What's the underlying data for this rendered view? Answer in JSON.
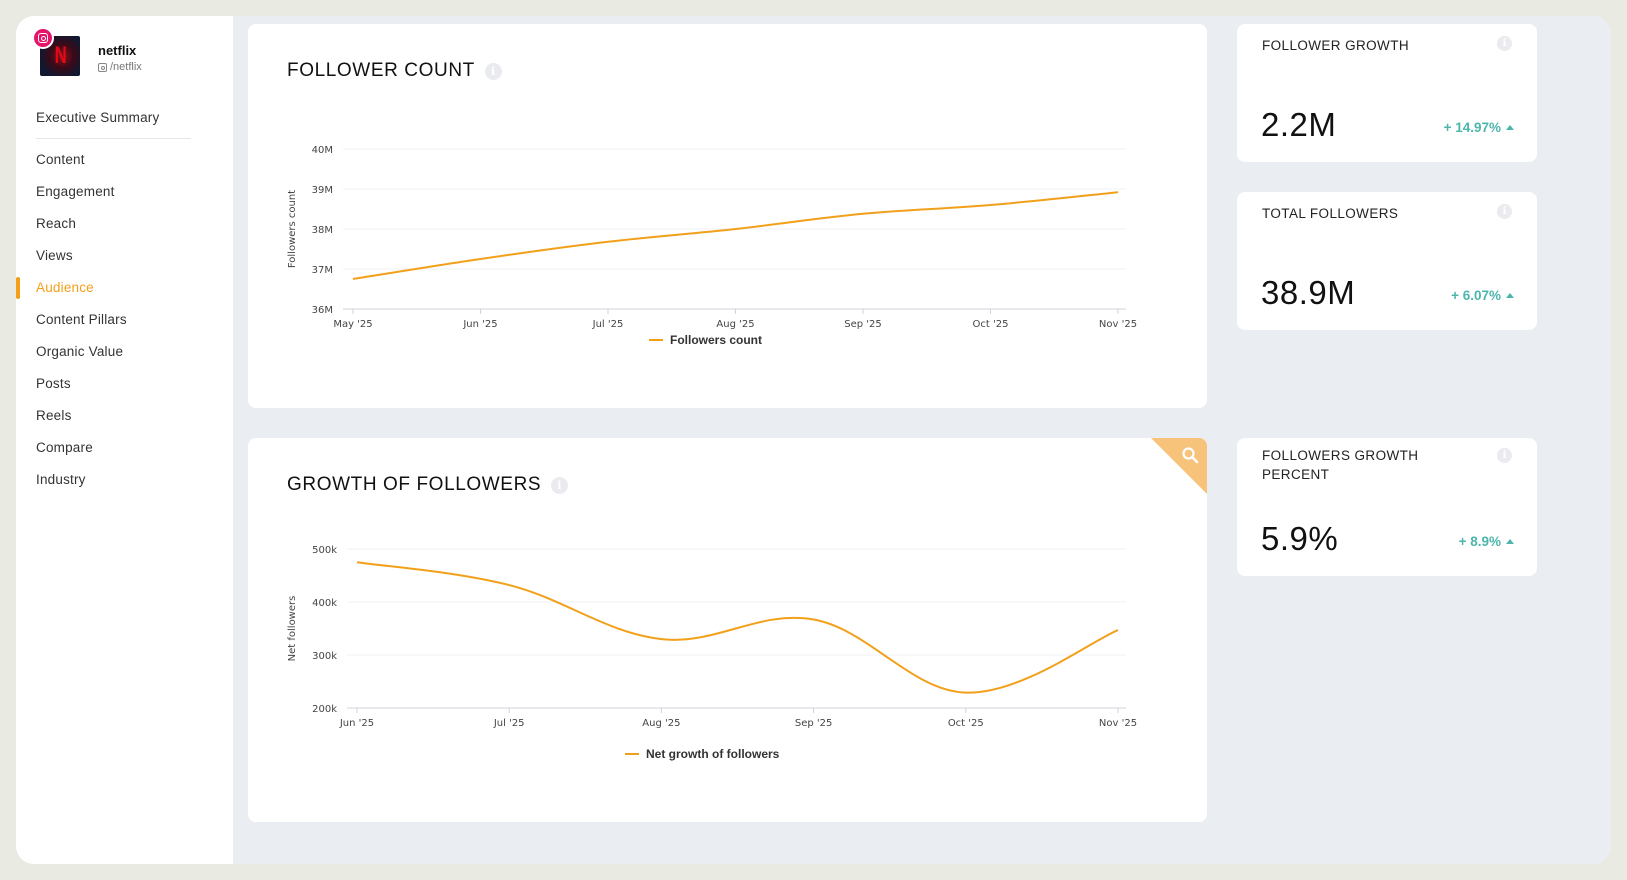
{
  "profile": {
    "name": "netflix",
    "handle": "/netflix",
    "avatar_letter": "N"
  },
  "nav": {
    "items": [
      {
        "label": "Executive Summary",
        "active": false
      },
      {
        "label": "Content",
        "active": false
      },
      {
        "label": "Engagement",
        "active": false
      },
      {
        "label": "Reach",
        "active": false
      },
      {
        "label": "Views",
        "active": false
      },
      {
        "label": "Audience",
        "active": true
      },
      {
        "label": "Content Pillars",
        "active": false
      },
      {
        "label": "Organic Value",
        "active": false
      },
      {
        "label": "Posts",
        "active": false
      },
      {
        "label": "Reels",
        "active": false
      },
      {
        "label": "Compare",
        "active": false
      },
      {
        "label": "Industry",
        "active": false
      }
    ]
  },
  "follower_count": {
    "title": "FOLLOWER COUNT",
    "info_icon": "info-icon"
  },
  "growth_of_followers": {
    "title": "GROWTH OF FOLLOWERS",
    "info_icon": "info-icon",
    "corner_icon": "search-icon"
  },
  "stats": {
    "follower_growth": {
      "title": "FOLLOWER GROWTH",
      "value": "2.2M",
      "change": "+ 14.97%"
    },
    "total_followers": {
      "title": "TOTAL FOLLOWERS",
      "value": "38.9M",
      "change": "+ 6.07%"
    },
    "followers_growth_percent": {
      "title": "FOLLOWERS GROWTH PERCENT",
      "value": "5.9%",
      "change": "+ 8.9%"
    }
  },
  "colors": {
    "accent": "#f2a01a",
    "positive": "#4db6ac",
    "instagram": "#e4146b"
  },
  "chart_data": [
    {
      "type": "line",
      "title": "",
      "xlabel": "",
      "ylabel": "Followers count",
      "x": [
        "May '25",
        "Jun '25",
        "Jul '25",
        "Aug '25",
        "Sep '25",
        "Oct '25",
        "Nov '25"
      ],
      "series": [
        {
          "name": "Followers count",
          "values": [
            36.75,
            37.25,
            37.68,
            38.0,
            38.38,
            38.6,
            38.92
          ]
        }
      ],
      "y_ticks": [
        "36M",
        "37M",
        "38M",
        "39M",
        "40M"
      ],
      "ylim": [
        36,
        40
      ],
      "unit": "M",
      "legend": "bottom-center",
      "grid": true
    },
    {
      "type": "line",
      "title": "",
      "xlabel": "",
      "ylabel": "Net followers",
      "x": [
        "Jun '25",
        "Jul '25",
        "Aug '25",
        "Sep '25",
        "Oct '25",
        "Nov '25"
      ],
      "series": [
        {
          "name": "Net growth of followers",
          "values": [
            475,
            432,
            330,
            367,
            229,
            347
          ]
        }
      ],
      "y_ticks": [
        "200k",
        "300k",
        "400k",
        "500k"
      ],
      "ylim": [
        200,
        500
      ],
      "unit": "k",
      "legend": "bottom-center",
      "grid": true
    }
  ]
}
